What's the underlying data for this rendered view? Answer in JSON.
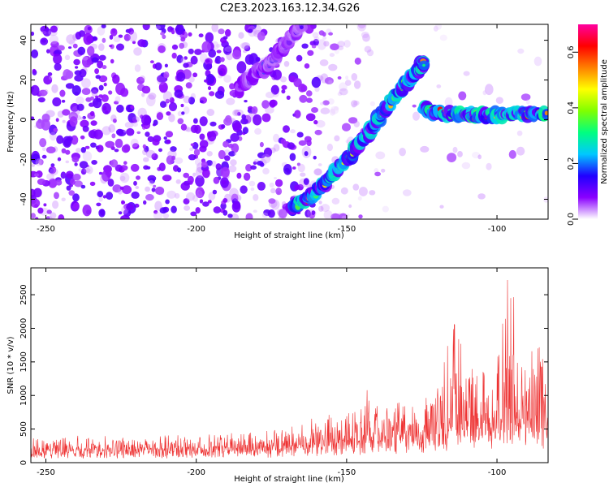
{
  "title": "C2E3.2023.163.12.34.G26",
  "chart_data": [
    {
      "type": "heatmap",
      "xlabel": "Height of straight line (km)",
      "ylabel": "Frequency (Hz)",
      "xlim": [
        -255,
        -83
      ],
      "ylim": [
        -50,
        48
      ],
      "x_ticks": [
        -250,
        -200,
        -150,
        -100
      ],
      "x_tick_labels": [
        "-250",
        "-200",
        "-150",
        "-100"
      ],
      "y_ticks": [
        -40,
        -20,
        0,
        20,
        40
      ],
      "y_tick_labels": [
        "-40",
        "-20",
        "0",
        "20",
        "40"
      ],
      "grid": false,
      "colorbar": {
        "label": "Normalized spectral amplitude",
        "min": 0.0,
        "max": 0.7,
        "ticks": [
          0.0,
          0.2,
          0.4,
          0.6
        ],
        "tick_labels": [
          "0.0",
          "0.2",
          "0.4",
          "0.6"
        ],
        "colormap": "hsv-rainbow",
        "colors": [
          "#ffffff",
          "#8a00ff",
          "#2000ff",
          "#00c8ff",
          "#00ff80",
          "#80ff00",
          "#ffff00",
          "#ff8000",
          "#ff0000",
          "#ff00a0"
        ]
      },
      "features": [
        {
          "name": "diagonal ridge",
          "points": [
            [
              -168,
              -45
            ],
            [
              -160,
              -36
            ],
            [
              -150,
              -20
            ],
            [
              -142,
              -5
            ],
            [
              -135,
              10
            ],
            [
              -128,
              22
            ],
            [
              -124,
              29
            ]
          ],
          "amplitude": 0.4
        },
        {
          "name": "horizontal ridge",
          "points": [
            [
              -125,
              5
            ],
            [
              -115,
              3
            ],
            [
              -105,
              2
            ],
            [
              -95,
              3
            ],
            [
              -83,
              3
            ]
          ],
          "amplitude": 0.45
        },
        {
          "name": "faint upper ridge",
          "points": [
            [
              -186,
              17
            ],
            [
              -178,
              25
            ],
            [
              -172,
              35
            ],
            [
              -165,
              47
            ]
          ],
          "amplitude": 0.12
        }
      ],
      "noise_amplitude": 0.08
    },
    {
      "type": "line",
      "xlabel": "Height of straight line (km)",
      "ylabel": "SNR (10 * v/v)",
      "xlim": [
        -255,
        -83
      ],
      "ylim": [
        0,
        2900
      ],
      "x_ticks": [
        -250,
        -200,
        -150,
        -100
      ],
      "x_tick_labels": [
        "-250",
        "-200",
        "-150",
        "-100"
      ],
      "y_ticks": [
        0,
        500,
        1000,
        1500,
        2000,
        2500
      ],
      "y_tick_labels": [
        "0",
        "500",
        "1000",
        "1500",
        "2000",
        "2500"
      ],
      "grid": false,
      "line_color": "#ee3333",
      "envelope": [
        {
          "x": -255,
          "base": 150,
          "peak": 400
        },
        {
          "x": -200,
          "base": 160,
          "peak": 420
        },
        {
          "x": -170,
          "base": 180,
          "peak": 500
        },
        {
          "x": -165,
          "base": 220,
          "peak": 650
        },
        {
          "x": -160,
          "base": 230,
          "peak": 750
        },
        {
          "x": -150,
          "base": 250,
          "peak": 700
        },
        {
          "x": -142,
          "base": 300,
          "peak": 1250
        },
        {
          "x": -135,
          "base": 300,
          "peak": 900
        },
        {
          "x": -125,
          "base": 350,
          "peak": 900
        },
        {
          "x": -115,
          "base": 450,
          "peak": 2400
        },
        {
          "x": -110,
          "base": 500,
          "peak": 1600
        },
        {
          "x": -100,
          "base": 450,
          "peak": 1900
        },
        {
          "x": -96,
          "base": 450,
          "peak": 2900
        },
        {
          "x": -90,
          "base": 450,
          "peak": 1800
        },
        {
          "x": -85,
          "base": 500,
          "peak": 2700
        },
        {
          "x": -83,
          "base": 500,
          "peak": 1300
        }
      ]
    }
  ]
}
